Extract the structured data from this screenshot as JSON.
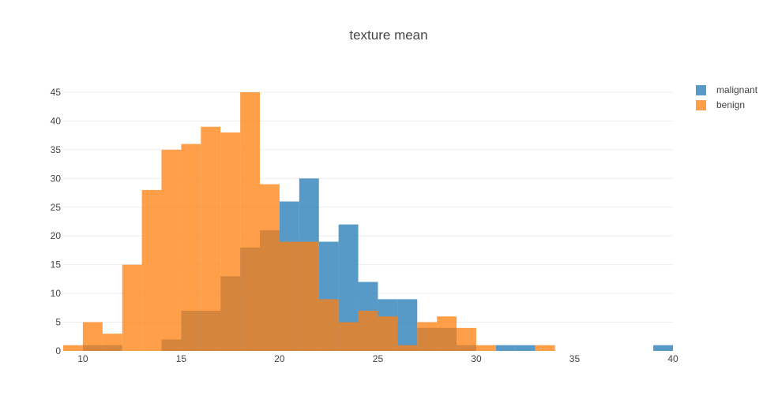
{
  "chart_data": {
    "type": "bar",
    "title": "texture mean",
    "xlabel": "",
    "ylabel": "",
    "barmode": "overlay",
    "xlim": [
      9,
      40
    ],
    "ylim": [
      0,
      45
    ],
    "bin_start": 9,
    "bin_size": 1,
    "x_ticks": [
      "10",
      "15",
      "20",
      "25",
      "30",
      "35",
      "40"
    ],
    "y_ticks": [
      "0",
      "5",
      "10",
      "15",
      "20",
      "25",
      "30",
      "35",
      "40",
      "45"
    ],
    "grid": true,
    "legend_position": "top-right",
    "series": [
      {
        "name": "malignant",
        "color": "#1f77b4",
        "values": [
          0,
          1,
          1,
          0,
          0,
          2,
          7,
          7,
          13,
          18,
          21,
          26,
          30,
          19,
          22,
          12,
          9,
          9,
          4,
          4,
          1,
          0,
          1,
          1,
          0,
          0,
          0,
          0,
          0,
          0,
          1
        ]
      },
      {
        "name": "benign",
        "color": "#ff7f0e",
        "values": [
          1,
          5,
          3,
          15,
          28,
          35,
          36,
          39,
          38,
          45,
          29,
          19,
          19,
          9,
          5,
          7,
          6,
          1,
          5,
          6,
          4,
          1,
          0,
          0,
          1,
          0,
          0,
          0,
          0,
          0,
          0
        ]
      }
    ]
  }
}
